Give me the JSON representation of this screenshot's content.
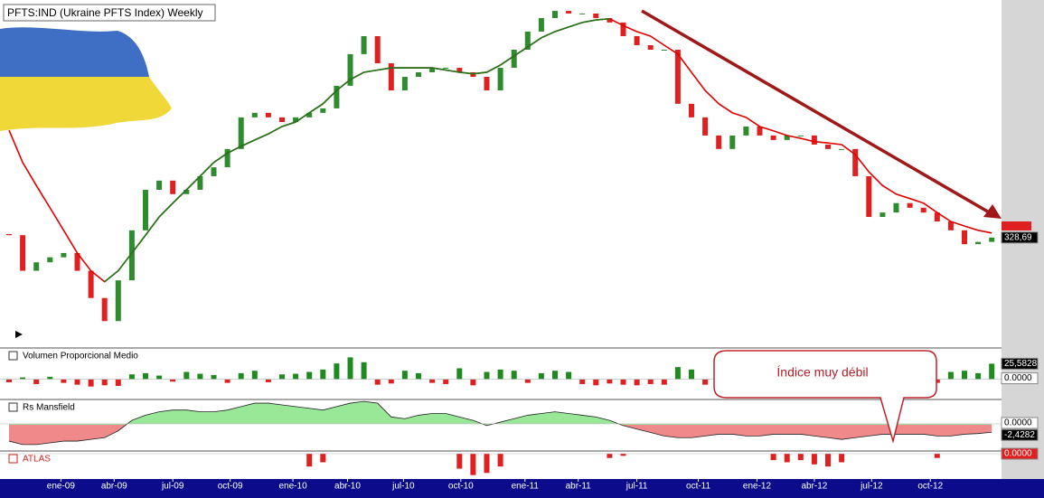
{
  "chart_data": [
    {
      "type": "candlestick",
      "title": "PFTS:IND (Ukraine PFTS Index) Weekly",
      "log_scale": true,
      "ylim": [
        184,
        1208
      ],
      "up_color": "#2e8b2e",
      "down_color": "#e02020",
      "open": [
        335,
        333,
        274,
        287,
        295,
        302,
        274,
        236,
        208,
        260,
        342,
        427,
        449,
        417,
        427,
        460,
        483,
        534,
        635,
        651,
        635,
        619,
        635,
        651,
        667,
        755,
        898,
        991,
        854,
        736,
        793,
        813,
        833,
        833,
        813,
        793,
        736,
        833,
        920,
        1016,
        1094,
        1138,
        1122,
        1122,
        1094,
        1068,
        991,
        943,
        920,
        920,
        684,
        635,
        575,
        534,
        575,
        604,
        575,
        561,
        575,
        575,
        547,
        534,
        534,
        460,
        368,
        377,
        397,
        387,
        377,
        359,
        342,
        317,
        321
      ],
      "close": [
        333,
        274,
        287,
        295,
        302,
        274,
        236,
        208,
        260,
        342,
        427,
        449,
        417,
        427,
        460,
        483,
        534,
        635,
        651,
        635,
        619,
        635,
        651,
        667,
        755,
        898,
        991,
        854,
        736,
        793,
        813,
        833,
        833,
        813,
        793,
        736,
        833,
        920,
        1016,
        1094,
        1138,
        1122,
        1122,
        1094,
        1068,
        991,
        943,
        920,
        920,
        684,
        635,
        575,
        534,
        575,
        604,
        575,
        561,
        575,
        575,
        547,
        534,
        534,
        460,
        368,
        377,
        397,
        387,
        377,
        359,
        342,
        317,
        321,
        328.69
      ],
      "last_value_label": "328,69",
      "lines": [
        {
          "color": "#e00000",
          "values": [
            592,
            496,
            437,
            387,
            342,
            302,
            274,
            258,
            274,
            302,
            333,
            368,
            397,
            427,
            460,
            496,
            522,
            542,
            561,
            580,
            604,
            619,
            651,
            684,
            736,
            781,
            813,
            823,
            833,
            833,
            833,
            833,
            823,
            813,
            806,
            813,
            846,
            889,
            934,
            982,
            1016,
            1042,
            1068,
            1083,
            1090,
            1050,
            1016,
            991,
            943,
            898,
            813,
            736,
            684,
            651,
            635,
            604,
            590,
            575,
            566,
            556,
            552,
            547,
            518,
            471,
            437,
            417,
            407,
            397,
            377,
            359,
            350,
            342,
            337
          ]
        },
        {
          "color": "#1a7a1a",
          "values": [
            null,
            null,
            null,
            null,
            null,
            null,
            null,
            258,
            274,
            302,
            333,
            368,
            397,
            427,
            460,
            496,
            522,
            542,
            561,
            580,
            604,
            619,
            651,
            684,
            736,
            781,
            813,
            823,
            833,
            833,
            833,
            833,
            823,
            813,
            806,
            813,
            846,
            889,
            934,
            982,
            1016,
            1042,
            1068,
            1083,
            1090,
            null,
            null,
            null,
            null,
            null,
            null,
            null,
            null,
            null,
            null,
            null,
            null,
            null,
            null,
            null,
            null,
            null,
            null,
            null,
            null,
            null,
            null,
            null,
            null,
            null,
            null,
            null,
            null
          ]
        }
      ],
      "xticks": [
        {
          "value": 3.8,
          "label": "ene-09"
        },
        {
          "value": 7.7,
          "label": "abr-09"
        },
        {
          "value": 12.0,
          "label": "jul-09"
        },
        {
          "value": 16.2,
          "label": "oct-09"
        },
        {
          "value": 20.8,
          "label": "ene-10"
        },
        {
          "value": 24.8,
          "label": "abr-10"
        },
        {
          "value": 28.9,
          "label": "jul-10"
        },
        {
          "value": 33.1,
          "label": "oct-10"
        },
        {
          "value": 37.8,
          "label": "ene-11"
        },
        {
          "value": 41.7,
          "label": "abr-11"
        },
        {
          "value": 46.0,
          "label": "jul-11"
        },
        {
          "value": 50.5,
          "label": "oct-11"
        },
        {
          "value": 54.8,
          "label": "ene-12"
        },
        {
          "value": 59.0,
          "label": "abr-12"
        },
        {
          "value": 63.2,
          "label": "jul-12"
        },
        {
          "value": 67.5,
          "label": "oct-12"
        }
      ]
    },
    {
      "type": "bar",
      "title": "Volumen Proporcional Medio",
      "ylim": [
        -14,
        47
      ],
      "up_color": "#1f8a1f",
      "down_color": "#e02020",
      "values": [
        -5,
        3,
        -8,
        4,
        -6,
        -9,
        -12,
        -10,
        -11,
        8,
        10,
        6,
        -4,
        12,
        9,
        7,
        -6,
        10,
        14,
        -5,
        8,
        9,
        12,
        16,
        26,
        36,
        28,
        -9,
        -7,
        14,
        10,
        -6,
        -8,
        18,
        -10,
        12,
        16,
        14,
        -6,
        10,
        14,
        12,
        -8,
        -10,
        -7,
        -9,
        -10,
        -8,
        -9,
        20,
        16,
        -9,
        -12,
        -10,
        -8,
        12,
        -10,
        -7,
        8,
        -9,
        -11,
        -8,
        -9,
        -12,
        10,
        -8,
        -7,
        9,
        -6,
        12,
        14,
        10,
        25.5828
      ],
      "last_value_label": "25,5828",
      "yticks": [
        {
          "value": 0,
          "label": "0.0000"
        }
      ],
      "annotation": "Índice muy débil"
    },
    {
      "type": "area",
      "title": "Rs Mansfield",
      "ylim": [
        -7.6,
        6.8
      ],
      "up_color": "#98e898",
      "down_color": "#f08a8a",
      "values": [
        -5,
        -6,
        -6,
        -5.5,
        -5,
        -5,
        -4.5,
        -4,
        -2,
        1,
        2.5,
        3.5,
        4,
        4,
        3.5,
        3.5,
        4,
        5,
        6,
        6,
        5.5,
        5,
        4.5,
        4,
        5,
        6,
        6.5,
        6,
        2,
        1.5,
        2.5,
        3,
        3,
        2,
        1,
        -0.5,
        0.5,
        1.5,
        2.5,
        3,
        3.5,
        3,
        2.5,
        2,
        1,
        -0.5,
        -1.5,
        -2.5,
        -3.5,
        -4,
        -4,
        -3.5,
        -3,
        -3,
        -3.5,
        -3.5,
        -3,
        -3,
        -3,
        -3.5,
        -4,
        -4.5,
        -4,
        -3.5,
        -3,
        -3,
        -3,
        -3,
        -3.5,
        -3.5,
        -3,
        -2.8,
        -2.4282
      ],
      "last_value_label": "-2,4282",
      "yticks": [
        {
          "value": 0,
          "label": "0.0000"
        }
      ]
    },
    {
      "type": "bar",
      "title": "ATLAS",
      "ylim": [
        -11,
        0
      ],
      "up_color": "#1f8a1f",
      "down_color": "#e02020",
      "values": [
        0,
        0,
        0,
        0,
        0,
        0,
        0,
        0,
        0,
        0,
        0,
        0,
        0,
        0,
        0,
        0,
        0,
        0,
        0,
        0,
        0,
        0,
        -6,
        -4,
        0,
        0,
        0,
        0,
        0,
        0,
        0,
        0,
        0,
        -7,
        -10,
        -9,
        -6,
        0,
        0,
        0,
        0,
        0,
        0,
        0,
        -2,
        -1,
        0,
        0,
        0,
        0,
        0,
        0,
        0,
        0,
        0,
        0,
        -3,
        -4,
        -3,
        -5,
        -6,
        -4,
        0,
        0,
        0,
        0,
        0,
        0,
        -2,
        0,
        0,
        0,
        0
      ],
      "yticks": [
        {
          "value": 0,
          "label": "0.0000"
        }
      ]
    }
  ]
}
